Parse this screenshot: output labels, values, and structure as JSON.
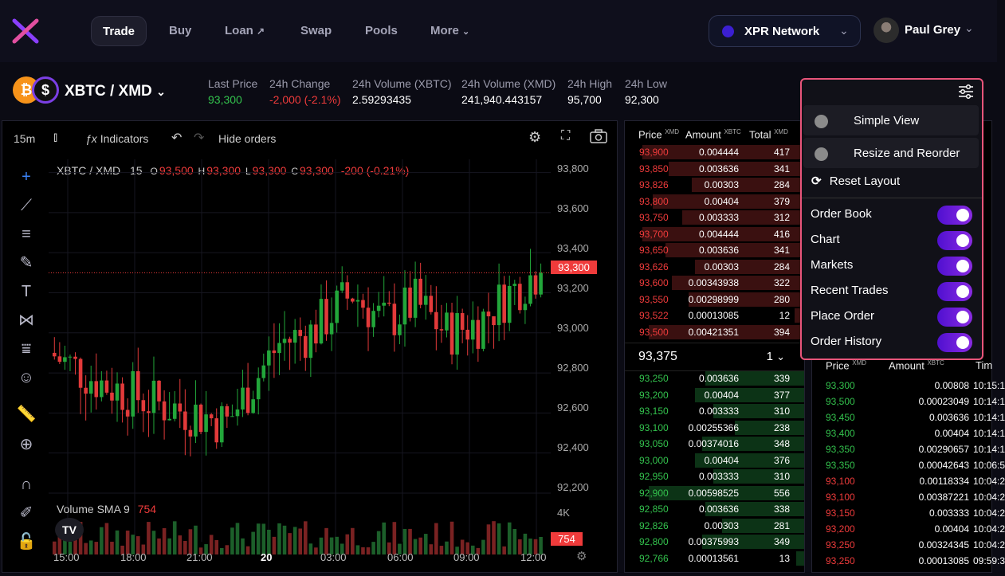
{
  "nav": {
    "items": [
      {
        "label": "Trade",
        "active": true
      },
      {
        "label": "Buy"
      },
      {
        "label": "Loan"
      },
      {
        "label": "Swap"
      },
      {
        "label": "Pools"
      },
      {
        "label": "More"
      }
    ],
    "network": "XPR Network",
    "user": "Paul Grey"
  },
  "pair": {
    "name": "XBTC / XMD",
    "base_icon": "bitcoin-icon",
    "quote_icon": "dollar-icon"
  },
  "stats": [
    {
      "label": "Last Price",
      "value": "93,300",
      "color": "green"
    },
    {
      "label": "24h Change",
      "value": "-2,000 (-2.1%)",
      "color": "red"
    },
    {
      "label": "24h Volume (XBTC)",
      "value": "2.59293435"
    },
    {
      "label": "24h Volume (XMD)",
      "value": "241,940.443157"
    },
    {
      "label": "24h High",
      "value": "95,700"
    },
    {
      "label": "24h Low",
      "value": "92,300"
    }
  ],
  "chart": {
    "interval": "15m",
    "indicators_label": "Indicators",
    "hide_orders_label": "Hide orders",
    "legend": {
      "symbol": "XBTC / XMD",
      "interval": "15",
      "o_label": "O",
      "o": "93,500",
      "h_label": "H",
      "h": "93,300",
      "l_label": "L",
      "l": "93,300",
      "c_label": "C",
      "c": "93,300",
      "change": "-200 (-0.21%)"
    },
    "price_tag": "93,300",
    "volume_legend": "Volume SMA 9",
    "volume_value": "754",
    "volume_tag": "754",
    "volume_axis_label": "4K",
    "tv_logo": "TV"
  },
  "chart_data": {
    "type": "candlestick",
    "y_ticks": [
      "93,800",
      "93,600",
      "93,400",
      "93,200",
      "93,000",
      "92,800",
      "92,600",
      "92,400",
      "92,200"
    ],
    "x_ticks": [
      "15:00",
      "18:00",
      "21:00",
      "20",
      "03:00",
      "06:00",
      "09:00",
      "12:00"
    ],
    "last_price": 93300,
    "ylim": [
      92180,
      93850
    ],
    "up_color": "#22a63a",
    "down_color": "#e23a3a"
  },
  "orderbook": {
    "headers": {
      "price": "Price",
      "price_unit": "XMD",
      "amount": "Amount",
      "amount_unit": "XBTC",
      "total": "Total",
      "total_unit": "XMD"
    },
    "asks": [
      {
        "price": "93,900",
        "amount": "0.004444",
        "total": "417",
        "depth": 0.98
      },
      {
        "price": "93,850",
        "amount": "0.003636",
        "total": "341",
        "depth": 0.82
      },
      {
        "price": "93,826",
        "amount": "0.00303",
        "total": "284",
        "depth": 0.68
      },
      {
        "price": "93,800",
        "amount": "0.00404",
        "total": "379",
        "depth": 0.92
      },
      {
        "price": "93,750",
        "amount": "0.003333",
        "total": "312",
        "depth": 0.74
      },
      {
        "price": "93,700",
        "amount": "0.004444",
        "total": "416",
        "depth": 0.98
      },
      {
        "price": "93,650",
        "amount": "0.003636",
        "total": "341",
        "depth": 0.84
      },
      {
        "price": "93,626",
        "amount": "0.00303",
        "total": "284",
        "depth": 0.66
      },
      {
        "price": "93,600",
        "amount": "0.00343938",
        "total": "322",
        "depth": 0.8
      },
      {
        "price": "93,550",
        "amount": "0.00298999",
        "total": "280",
        "depth": 0.7
      },
      {
        "price": "93,522",
        "amount": "0.00013085",
        "total": "12",
        "depth": 0.06
      },
      {
        "price": "93,500",
        "amount": "0.00421351",
        "total": "394",
        "depth": 0.94
      }
    ],
    "mid_price": "93,375",
    "grouping": "1",
    "bids": [
      {
        "price": "93,250",
        "amount": "0.003636",
        "total": "339",
        "depth": 0.6
      },
      {
        "price": "93,200",
        "amount": "0.00404",
        "total": "377",
        "depth": 0.66
      },
      {
        "price": "93,150",
        "amount": "0.003333",
        "total": "310",
        "depth": 0.55
      },
      {
        "price": "93,100",
        "amount": "0.00255366",
        "total": "238",
        "depth": 0.42
      },
      {
        "price": "93,050",
        "amount": "0.00374016",
        "total": "348",
        "depth": 0.62
      },
      {
        "price": "93,000",
        "amount": "0.00404",
        "total": "376",
        "depth": 0.66
      },
      {
        "price": "92,950",
        "amount": "0.003333",
        "total": "310",
        "depth": 0.55
      },
      {
        "price": "92,900",
        "amount": "0.00598525",
        "total": "556",
        "depth": 0.94
      },
      {
        "price": "92,850",
        "amount": "0.003636",
        "total": "338",
        "depth": 0.6
      },
      {
        "price": "92,826",
        "amount": "0.00303",
        "total": "281",
        "depth": 0.5
      },
      {
        "price": "92,800",
        "amount": "0.00375993",
        "total": "349",
        "depth": 0.62
      },
      {
        "price": "92,766",
        "amount": "0.00013561",
        "total": "13",
        "depth": 0.05
      }
    ]
  },
  "trades": {
    "headers": {
      "price": "Price",
      "price_unit": "XMD",
      "amount": "Amount",
      "amount_unit": "XBTC",
      "time": "Tim"
    },
    "rows": [
      {
        "price": "93,300",
        "amount": "0.00808",
        "time": "10:15:1",
        "side": "buy"
      },
      {
        "price": "93,500",
        "amount": "0.00023049",
        "time": "10:14:1",
        "side": "buy"
      },
      {
        "price": "93,450",
        "amount": "0.003636",
        "time": "10:14:1",
        "side": "buy"
      },
      {
        "price": "93,400",
        "amount": "0.00404",
        "time": "10:14:1",
        "side": "buy"
      },
      {
        "price": "93,350",
        "amount": "0.00290657",
        "time": "10:14:1",
        "side": "buy"
      },
      {
        "price": "93,350",
        "amount": "0.00042643",
        "time": "10:06:5",
        "side": "buy"
      },
      {
        "price": "93,100",
        "amount": "0.00118334",
        "time": "10:04:2",
        "side": "sell"
      },
      {
        "price": "93,100",
        "amount": "0.00387221",
        "time": "10:04:2",
        "side": "sell"
      },
      {
        "price": "93,150",
        "amount": "0.003333",
        "time": "10:04:2",
        "side": "sell"
      },
      {
        "price": "93,200",
        "amount": "0.00404",
        "time": "10:04:2",
        "side": "sell"
      },
      {
        "price": "93,250",
        "amount": "0.00324345",
        "time": "10:04:2",
        "side": "sell"
      },
      {
        "price": "93,250",
        "amount": "0.00013085",
        "time": "09:59:3",
        "side": "sell"
      }
    ]
  },
  "layout_menu": {
    "views": [
      "Simple View",
      "Resize and Reorder"
    ],
    "reset": "Reset Layout",
    "panels": [
      {
        "label": "Order Book",
        "on": true
      },
      {
        "label": "Chart",
        "on": true
      },
      {
        "label": "Markets",
        "on": true
      },
      {
        "label": "Recent Trades",
        "on": true
      },
      {
        "label": "Place Order",
        "on": true
      },
      {
        "label": "Order History",
        "on": true
      }
    ]
  }
}
